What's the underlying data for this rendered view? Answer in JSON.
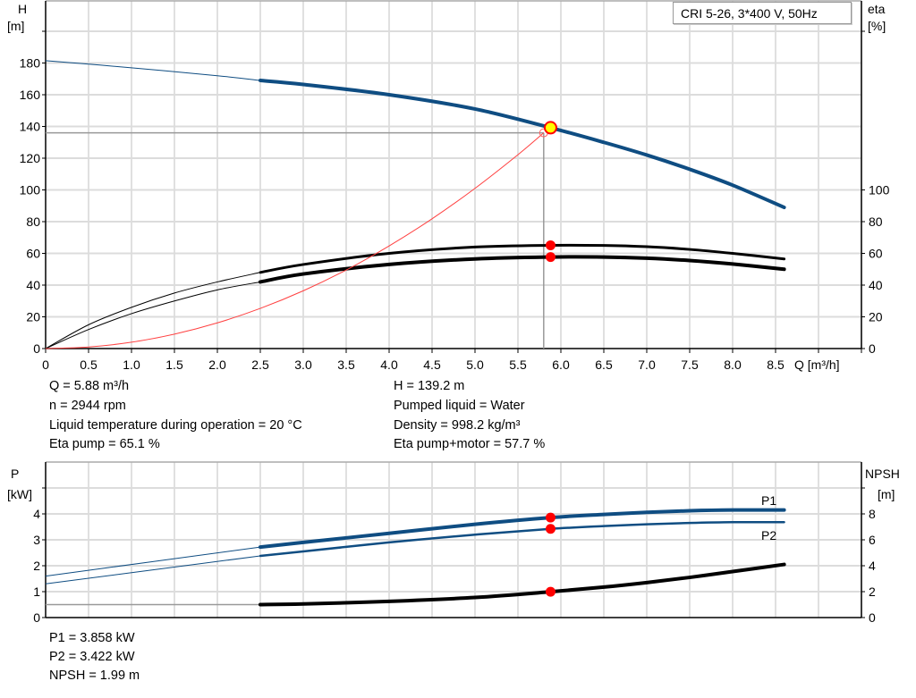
{
  "chart_data": [
    {
      "type": "line",
      "title": "CRI 5-26, 3*400 V, 50Hz",
      "xlabel": "Q [m³/h]",
      "x_unit_label": "Q [m³/h]",
      "ylabel": "H",
      "ylabel_unit": "[m]",
      "y2label": "eta",
      "y2label_unit": "[%]",
      "xlim": [
        0,
        9.5
      ],
      "ylim": [
        0,
        220
      ],
      "y2lim": [
        0,
        220
      ],
      "xticks": [
        "0",
        "0.5",
        "1.0",
        "1.5",
        "2.0",
        "2.5",
        "3.0",
        "3.5",
        "4.0",
        "4.5",
        "5.0",
        "5.5",
        "6.0",
        "6.5",
        "7.0",
        "7.5",
        "8.0",
        "8.5"
      ],
      "yticks": [
        "0",
        "20",
        "40",
        "60",
        "80",
        "100",
        "120",
        "140",
        "160",
        "180"
      ],
      "y2ticks": [
        "0",
        "20",
        "40",
        "60",
        "80",
        "100"
      ],
      "grid": true,
      "series": [
        {
          "key": "H",
          "axis": "left",
          "color": "#0f4d82",
          "thin_until": 2.5,
          "points": [
            [
              0,
              181.5
            ],
            [
              1,
              177
            ],
            [
              2,
              172
            ],
            [
              2.5,
              169
            ],
            [
              3,
              166.5
            ],
            [
              4,
              160
            ],
            [
              5,
              151
            ],
            [
              5.88,
              139.2
            ],
            [
              6.5,
              130
            ],
            [
              7,
              122
            ],
            [
              7.5,
              113
            ],
            [
              8,
              103
            ],
            [
              8.6,
              89
            ]
          ]
        },
        {
          "key": "eta_pump",
          "axis": "right",
          "color": "#000000",
          "thin_until": 2.5,
          "points": [
            [
              0,
              0
            ],
            [
              0.5,
              15
            ],
            [
              1,
              26
            ],
            [
              1.5,
              35
            ],
            [
              2,
              42
            ],
            [
              2.5,
              48
            ],
            [
              3,
              53
            ],
            [
              4,
              60
            ],
            [
              5,
              64
            ],
            [
              5.88,
              65.1
            ],
            [
              6.5,
              65
            ],
            [
              7,
              64.2
            ],
            [
              7.5,
              62.5
            ],
            [
              8,
              60
            ],
            [
              8.6,
              56.5
            ]
          ]
        },
        {
          "key": "eta_pump_motor",
          "axis": "right",
          "color": "#000000",
          "thin_until": 2.5,
          "points": [
            [
              0,
              0
            ],
            [
              0.5,
              12
            ],
            [
              1,
              22
            ],
            [
              1.5,
              30
            ],
            [
              2,
              37
            ],
            [
              2.5,
              42
            ],
            [
              3,
              47
            ],
            [
              4,
              53
            ],
            [
              5,
              56.5
            ],
            [
              5.88,
              57.7
            ],
            [
              6.5,
              57.7
            ],
            [
              7,
              57
            ],
            [
              7.5,
              55.5
            ],
            [
              8,
              53.3
            ],
            [
              8.6,
              50
            ]
          ]
        },
        {
          "key": "system_curve",
          "axis": "left",
          "color": "#ff4040",
          "points": [
            [
              0,
              0
            ],
            [
              0.5,
              1
            ],
            [
              1,
              4
            ],
            [
              1.5,
              9.1
            ],
            [
              2,
              16.2
            ],
            [
              2.5,
              25.3
            ],
            [
              3,
              36.4
            ],
            [
              3.5,
              49.5
            ],
            [
              4,
              64.7
            ],
            [
              4.5,
              81.8
            ],
            [
              5,
              101
            ],
            [
              5.5,
              122.2
            ],
            [
              5.8,
              136
            ]
          ]
        }
      ],
      "duty_point": {
        "Q": 5.88,
        "H": 139.2,
        "eta_pump": 65.1,
        "eta_pump_motor": 57.7
      },
      "requested_point": {
        "Q": 5.8,
        "H": 136
      }
    },
    {
      "type": "line",
      "ylabel": "P",
      "ylabel_unit": "[kW]",
      "y2label": "NPSH",
      "y2label_unit": "[m]",
      "xlim": [
        0,
        9.5
      ],
      "ylim": [
        0,
        5
      ],
      "y2lim": [
        0,
        10
      ],
      "yticks": [
        "0",
        "1",
        "2",
        "3",
        "4"
      ],
      "y2ticks": [
        "0",
        "2",
        "4",
        "6",
        "8"
      ],
      "grid": true,
      "series": [
        {
          "key": "P1",
          "name": "P1",
          "axis": "left",
          "color": "#0f4d82",
          "thin_until": 2.5,
          "points": [
            [
              0,
              1.6
            ],
            [
              2.5,
              2.72
            ],
            [
              3,
              2.9
            ],
            [
              4,
              3.25
            ],
            [
              5,
              3.6
            ],
            [
              5.88,
              3.858
            ],
            [
              6.5,
              3.98
            ],
            [
              7,
              4.06
            ],
            [
              7.5,
              4.12
            ],
            [
              8,
              4.15
            ],
            [
              8.6,
              4.15
            ]
          ]
        },
        {
          "key": "P2",
          "name": "P2",
          "axis": "left",
          "color": "#0f4d82",
          "thin_until": 2.5,
          "points": [
            [
              0,
              1.3
            ],
            [
              2.5,
              2.38
            ],
            [
              3,
              2.55
            ],
            [
              4,
              2.9
            ],
            [
              5,
              3.2
            ],
            [
              5.88,
              3.422
            ],
            [
              6.5,
              3.53
            ],
            [
              7,
              3.6
            ],
            [
              7.5,
              3.65
            ],
            [
              8,
              3.68
            ],
            [
              8.6,
              3.68
            ]
          ]
        },
        {
          "key": "NPSH",
          "axis": "right",
          "color": "#000000",
          "thin_until": 2.5,
          "points": [
            [
              0,
              1.0
            ],
            [
              2.5,
              1.0
            ],
            [
              3,
              1.05
            ],
            [
              4,
              1.25
            ],
            [
              5,
              1.55
            ],
            [
              5.88,
              1.99
            ],
            [
              6.5,
              2.35
            ],
            [
              7,
              2.7
            ],
            [
              7.5,
              3.1
            ],
            [
              8,
              3.55
            ],
            [
              8.6,
              4.1
            ]
          ]
        }
      ],
      "duty_point": {
        "Q": 5.88,
        "P1": 3.858,
        "P2": 3.422,
        "NPSH": 1.99
      }
    }
  ],
  "info_top": {
    "left": [
      "Q = 5.88 m³/h",
      "n = 2944 rpm",
      "Liquid temperature during operation = 20 °C",
      "Eta pump = 65.1 %"
    ],
    "right": [
      "H = 139.2 m",
      "Pumped liquid = Water",
      "Density = 998.2 kg/m³",
      "Eta pump+motor = 57.7 %"
    ]
  },
  "info_bottom": [
    "P1 = 3.858 kW",
    "P2 = 3.422 kW",
    "NPSH = 1.99 m"
  ]
}
